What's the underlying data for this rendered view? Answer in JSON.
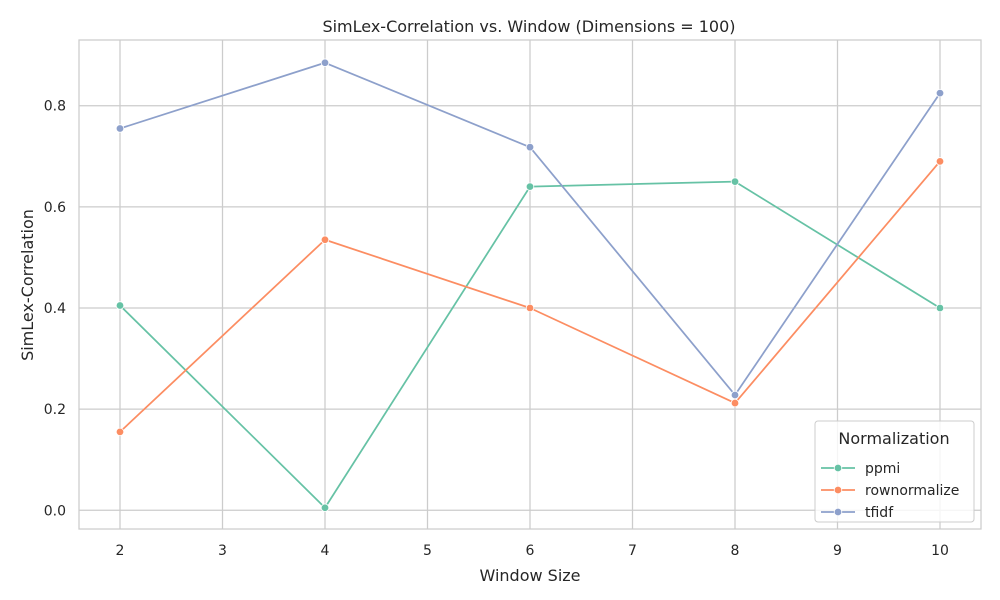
{
  "chart_data": {
    "type": "line",
    "title": "SimLex-Correlation vs. Window (Dimensions = 100)",
    "xlabel": "Window Size",
    "ylabel": "SimLex-Correlation",
    "x": [
      2,
      4,
      6,
      8,
      10
    ],
    "xlim": [
      1.6,
      10.4
    ],
    "ylim": [
      -0.037,
      0.93
    ],
    "xticks": [
      2,
      3,
      4,
      5,
      6,
      7,
      8,
      9,
      10
    ],
    "yticks": [
      0.0,
      0.2,
      0.4,
      0.6,
      0.8
    ],
    "ytick_labels": [
      "0.0",
      "0.2",
      "0.4",
      "0.6",
      "0.8"
    ],
    "grid": true,
    "legend": {
      "title": "Normalization",
      "placement": "lower-right"
    },
    "series": [
      {
        "name": "ppmi",
        "color": "#66c2a5",
        "values": [
          0.405,
          0.005,
          0.64,
          0.65,
          0.4
        ]
      },
      {
        "name": "rownormalize",
        "color": "#fc8d62",
        "values": [
          0.155,
          0.535,
          0.4,
          0.212,
          0.69
        ]
      },
      {
        "name": "tfidf",
        "color": "#8da0cb",
        "values": [
          0.755,
          0.885,
          0.718,
          0.228,
          0.825
        ]
      }
    ]
  }
}
